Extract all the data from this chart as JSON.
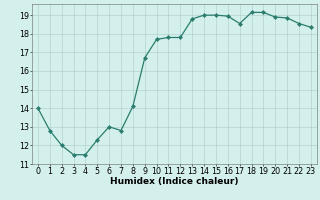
{
  "x": [
    0,
    1,
    2,
    3,
    4,
    5,
    6,
    7,
    8,
    9,
    10,
    11,
    12,
    13,
    14,
    15,
    16,
    17,
    18,
    19,
    20,
    21,
    22,
    23
  ],
  "y": [
    14.0,
    12.8,
    12.0,
    11.5,
    11.5,
    12.3,
    13.0,
    12.8,
    14.1,
    16.7,
    17.7,
    17.8,
    17.8,
    18.8,
    19.0,
    19.0,
    18.95,
    18.55,
    19.15,
    19.15,
    18.9,
    18.85,
    18.55,
    18.35
  ],
  "line_color": "#2a7d6e",
  "marker": "D",
  "marker_size": 2.0,
  "bg_color": "#d4f0ec",
  "grid_color": "#b0ccc9",
  "xlabel": "Humidex (Indice chaleur)",
  "xlabel_fontsize": 6.5,
  "tick_fontsize": 5.8,
  "ylim": [
    11,
    19.6
  ],
  "xlim": [
    -0.5,
    23.5
  ],
  "yticks": [
    11,
    12,
    13,
    14,
    15,
    16,
    17,
    18,
    19
  ],
  "xticks": [
    0,
    1,
    2,
    3,
    4,
    5,
    6,
    7,
    8,
    9,
    10,
    11,
    12,
    13,
    14,
    15,
    16,
    17,
    18,
    19,
    20,
    21,
    22,
    23
  ],
  "linewidth": 0.9
}
